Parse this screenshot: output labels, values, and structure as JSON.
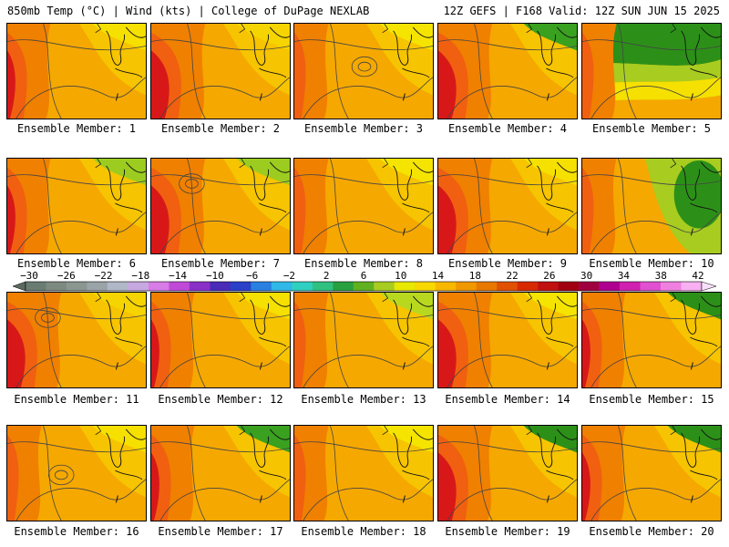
{
  "header": {
    "left_title": "850mb Temp (°C) | Wind (kts) | College of DuPage NEXLAB",
    "right_title": "12Z GEFS | F168 Valid: 12Z SUN JUN 15 2025"
  },
  "members": [
    {
      "label": "Ensemble Member: 1",
      "scheme": "warm-west",
      "north": "#f5e000"
    },
    {
      "label": "Ensemble Member: 2",
      "scheme": "hot-west",
      "north": "#f6d400"
    },
    {
      "label": "Ensemble Member: 3",
      "scheme": "mild",
      "north": "#f5e400"
    },
    {
      "label": "Ensemble Member: 4",
      "scheme": "hot-west",
      "north": "#3aa020"
    },
    {
      "label": "Ensemble Member: 5",
      "scheme": "cool-north",
      "north": "#2c9018"
    },
    {
      "label": "Ensemble Member: 6",
      "scheme": "warm-west",
      "north": "#9ccc20"
    },
    {
      "label": "Ensemble Member: 7",
      "scheme": "hot-west",
      "north": "#9ccc20"
    },
    {
      "label": "Ensemble Member: 8",
      "scheme": "mild",
      "north": "#f5e400"
    },
    {
      "label": "Ensemble Member: 9",
      "scheme": "hot-west",
      "north": "#f5e000"
    },
    {
      "label": "Ensemble Member: 10",
      "scheme": "cool-east",
      "north": "#2c9018"
    },
    {
      "label": "Ensemble Member: 11",
      "scheme": "hot-west",
      "north": "#f6d400"
    },
    {
      "label": "Ensemble Member: 12",
      "scheme": "warm-west",
      "north": "#f5e000"
    },
    {
      "label": "Ensemble Member: 13",
      "scheme": "mild",
      "north": "#b8d820"
    },
    {
      "label": "Ensemble Member: 14",
      "scheme": "hot-west",
      "north": "#f5e400"
    },
    {
      "label": "Ensemble Member: 15",
      "scheme": "warm-west",
      "north": "#2c9018"
    },
    {
      "label": "Ensemble Member: 16",
      "scheme": "mild",
      "north": "#f5e000"
    },
    {
      "label": "Ensemble Member: 17",
      "scheme": "warm-west",
      "north": "#3aa020"
    },
    {
      "label": "Ensemble Member: 18",
      "scheme": "mild",
      "north": "#f5e400"
    },
    {
      "label": "Ensemble Member: 19",
      "scheme": "hot-west",
      "north": "#2c9018"
    },
    {
      "label": "Ensemble Member: 20",
      "scheme": "warm-west",
      "north": "#2c9018"
    }
  ],
  "colorbar": {
    "tick_labels": [
      "−30",
      "−26",
      "−22",
      "−18",
      "−14",
      "−10",
      "−6",
      "−2",
      "2",
      "6",
      "10",
      "14",
      "18",
      "22",
      "26",
      "30",
      "34",
      "38",
      "42"
    ],
    "colors": [
      "#6a7c72",
      "#7d8a80",
      "#8a9690",
      "#9aa4a8",
      "#b0b8c8",
      "#c8a8e0",
      "#d87ce8",
      "#c04ad8",
      "#8a30c8",
      "#4a2ab8",
      "#2a40c8",
      "#2a80e0",
      "#30b8e8",
      "#30d0c0",
      "#30c080",
      "#28a040",
      "#60b020",
      "#a8cc20",
      "#e8e800",
      "#f8d800",
      "#f8b800",
      "#f09800",
      "#e87800",
      "#e05000",
      "#d82800",
      "#c01010",
      "#a00010",
      "#a00040",
      "#b00090",
      "#d020b0",
      "#e050d0",
      "#f080e0",
      "#f8b0f0"
    ]
  },
  "colors": {
    "hot": "#d81818",
    "warm_red": "#e84010",
    "orange_red": "#f06010",
    "orange": "#f08000",
    "amber": "#f5a800",
    "yellow_orange": "#f6c400",
    "yellow": "#f5e000"
  }
}
